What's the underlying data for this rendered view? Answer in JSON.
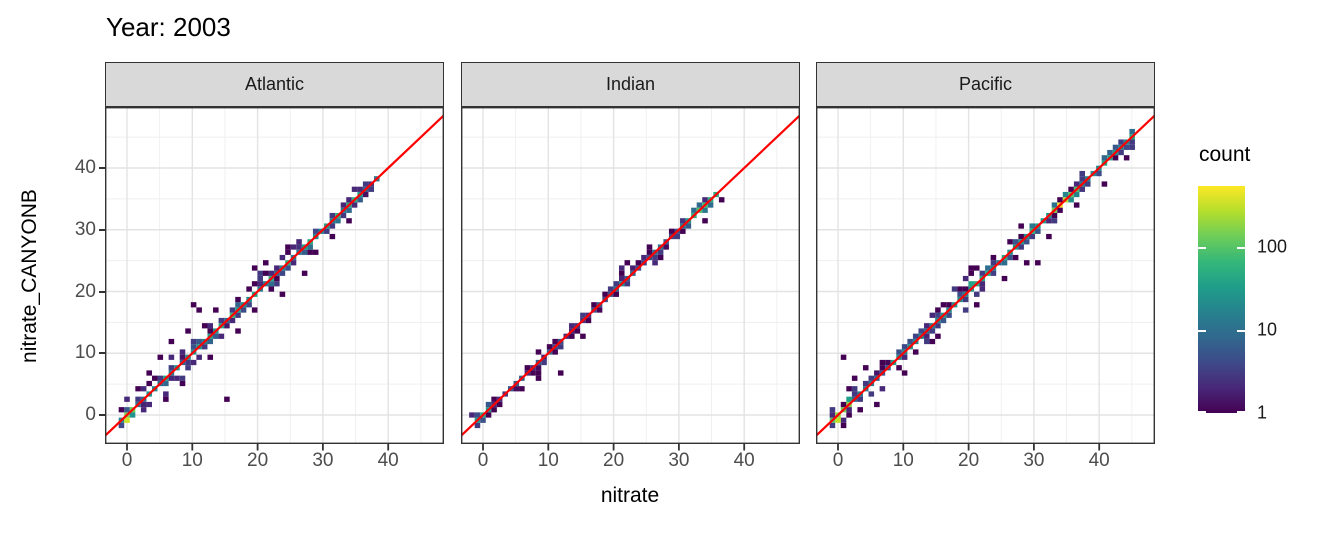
{
  "chart_data": {
    "type": "heatmap",
    "subtype": "bin2d-faceted",
    "title": "Year: 2003",
    "xlabel": "nitrate",
    "ylabel": "nitrate_CANYONB",
    "x_ticks": [
      0,
      10,
      20,
      30,
      40
    ],
    "y_ticks": [
      0,
      10,
      20,
      30,
      40
    ],
    "x_range": [
      -3.4,
      48.6
    ],
    "y_range": [
      -4.7,
      49.9
    ],
    "grid": true,
    "bin_size": 0.85,
    "identity_line": {
      "slope": 1,
      "intercept": 0,
      "color": "#FF0000"
    },
    "legend": {
      "title": "count",
      "scale": "log10",
      "ticks": [
        100,
        10,
        1
      ],
      "tick_labels": [
        "100",
        "10",
        "1"
      ],
      "max_count": 540,
      "palette": "viridis",
      "colors": [
        "#440154",
        "#482878",
        "#3E4A89",
        "#31688E",
        "#26828E",
        "#1F9E89",
        "#35B779",
        "#6DCD59",
        "#B4DE2C",
        "#FDE725"
      ]
    },
    "facets": [
      {
        "label": "Atlantic",
        "extent": [
          -0.85,
          39
        ],
        "seed": 7,
        "segments": [
          {
            "from": -0.9,
            "to": 1.7,
            "log": [
              1.3,
              2.2
            ],
            "spread": 1.7,
            "fringe": 1.0
          },
          {
            "from": 1.7,
            "to": 5,
            "log": [
              0.7,
              1.5
            ],
            "spread": 1.8,
            "fringe": 1.0
          },
          {
            "from": 5,
            "to": 13,
            "log": [
              0.7,
              1.6
            ],
            "spread": 2.4,
            "fringe": 1.2
          },
          {
            "from": 13,
            "to": 20,
            "log": [
              0.9,
              1.7
            ],
            "spread": 1.5,
            "fringe": 0.9
          },
          {
            "from": 20,
            "to": 28,
            "log": [
              0.8,
              1.7
            ],
            "spread": 1.7,
            "fringe": 1.0
          },
          {
            "from": 28,
            "to": 36,
            "log": [
              0.9,
              1.8
            ],
            "spread": 1.0,
            "fringe": 0.6
          },
          {
            "from": 36,
            "to": 39.1,
            "log": [
              0.4,
              1.1
            ],
            "spread": 0.7,
            "fringe": 0.3
          }
        ],
        "hotspots": [
          [
            0,
            -0.85,
            350
          ],
          [
            0,
            0,
            160
          ],
          [
            0.85,
            0.85,
            90
          ],
          [
            16.15,
            16.15,
            70
          ],
          [
            24.65,
            24.65,
            60
          ]
        ],
        "outliers": [
          [
            15.2,
            2.2
          ],
          [
            10.0,
            18.0
          ],
          [
            10.8,
            17.3
          ],
          [
            4.9,
            9.4
          ],
          [
            7.2,
            11.9
          ],
          [
            9.4,
            13.3
          ],
          [
            12.6,
            9.1
          ],
          [
            23.4,
            19.6
          ],
          [
            19.6,
            23.9
          ],
          [
            26.8,
            23.1
          ],
          [
            31.6,
            28.6
          ],
          [
            34.3,
            31.5
          ],
          [
            3.3,
            6.6
          ],
          [
            6.0,
            2.9
          ],
          [
            13.7,
            16.9
          ],
          [
            2.1,
            4.4
          ],
          [
            8.1,
            4.9
          ],
          [
            11.5,
            14.8
          ],
          [
            16.9,
            14.0
          ],
          [
            21.3,
            24.4
          ],
          [
            24.7,
            27.2
          ],
          [
            29.0,
            26.0
          ]
        ]
      },
      {
        "label": "Indian",
        "extent": [
          -0.85,
          36
        ],
        "seed": 13,
        "segments": [
          {
            "from": -0.9,
            "to": 1,
            "log": [
              1.0,
              1.6
            ],
            "spread": 0.9,
            "fringe": 0.4
          },
          {
            "from": 1,
            "to": 20,
            "log": [
              0.2,
              0.9
            ],
            "spread": 0.9,
            "fringe": 0.35
          },
          {
            "from": 20,
            "to": 23,
            "log": [
              0.3,
              1.0
            ],
            "spread": 1.6,
            "fringe": 0.9
          },
          {
            "from": 23,
            "to": 30,
            "log": [
              0.4,
              1.1
            ],
            "spread": 0.9,
            "fringe": 0.5
          },
          {
            "from": 30,
            "to": 36.1,
            "log": [
              1.1,
              1.9
            ],
            "spread": 0.9,
            "fringe": 0.55
          }
        ],
        "hotspots": [
          [
            0,
            0,
            45
          ],
          [
            -0.85,
            -0.85,
            30
          ],
          [
            33.15,
            33.15,
            95
          ],
          [
            34,
            34,
            75
          ],
          [
            21.25,
            21.25,
            25
          ]
        ],
        "outliers": [
          [
            12.3,
            7.0
          ],
          [
            27.4,
            25.1
          ],
          [
            21.9,
            24.4
          ],
          [
            25.6,
            27.6
          ],
          [
            33.9,
            31.6
          ],
          [
            8.4,
            6.3
          ],
          [
            15.3,
            13.0
          ]
        ]
      },
      {
        "label": "Pacific",
        "extent": [
          -0.85,
          45.5
        ],
        "seed": 5,
        "segments": [
          {
            "from": -0.9,
            "to": 2,
            "log": [
              1.3,
              2.3
            ],
            "spread": 2.0,
            "fringe": 1.2
          },
          {
            "from": 2,
            "to": 8,
            "log": [
              0.7,
              1.4
            ],
            "spread": 1.4,
            "fringe": 0.8
          },
          {
            "from": 8,
            "to": 12,
            "log": [
              0.9,
              1.6
            ],
            "spread": 1.0,
            "fringe": 0.6
          },
          {
            "from": 12,
            "to": 17,
            "log": [
              0.9,
              1.6
            ],
            "spread": 2.0,
            "fringe": 1.1
          },
          {
            "from": 17,
            "to": 22,
            "log": [
              1.0,
              1.7
            ],
            "spread": 2.2,
            "fringe": 1.2
          },
          {
            "from": 22,
            "to": 28,
            "log": [
              1.0,
              1.7
            ],
            "spread": 1.3,
            "fringe": 0.8
          },
          {
            "from": 28,
            "to": 33,
            "log": [
              1.1,
              1.8
            ],
            "spread": 1.1,
            "fringe": 0.7
          },
          {
            "from": 33,
            "to": 37,
            "log": [
              1.6,
              2.4
            ],
            "spread": 0.9,
            "fringe": 0.6
          },
          {
            "from": 37,
            "to": 45.6,
            "log": [
              1.0,
              1.8
            ],
            "spread": 0.8,
            "fringe": 0.5
          }
        ],
        "hotspots": [
          [
            0,
            -0.85,
            300
          ],
          [
            0,
            0,
            200
          ],
          [
            0.85,
            0.85,
            120
          ],
          [
            34,
            34,
            480
          ],
          [
            34.85,
            34.85,
            260
          ],
          [
            33.15,
            33.15,
            150
          ],
          [
            20.4,
            21.25,
            40
          ]
        ],
        "outliers": [
          [
            0.8,
            9.6
          ],
          [
            29.2,
            24.7
          ],
          [
            30.7,
            24.7
          ],
          [
            25.9,
            21.9
          ],
          [
            27.7,
            30.3
          ],
          [
            32.4,
            29.1
          ],
          [
            6.3,
            2.1
          ],
          [
            2.6,
            5.6
          ],
          [
            14.6,
            11.6
          ],
          [
            15.4,
            12.4
          ],
          [
            13.8,
            11.6
          ],
          [
            21.0,
            17.9
          ],
          [
            20.1,
            22.7
          ],
          [
            20.1,
            23.5
          ],
          [
            20.9,
            23.5
          ],
          [
            19.7,
            21.9
          ],
          [
            36.4,
            33.6
          ],
          [
            40.4,
            37.6
          ],
          [
            4.6,
            7.9
          ],
          [
            9.8,
            6.8
          ],
          [
            3.4,
            1.0
          ],
          [
            1.7,
            3.9
          ],
          [
            44.0,
            41.5
          ]
        ]
      }
    ]
  },
  "style_colors": {
    "strip_bg": "#D9D9D9",
    "panel_border": "#333333",
    "grid_major": "#E3E3E3",
    "grid_minor": "#EFEFEF",
    "tick_label": "#4D4D4D",
    "tick_mark": "#333333",
    "panel_bg": "#FFFFFF"
  }
}
